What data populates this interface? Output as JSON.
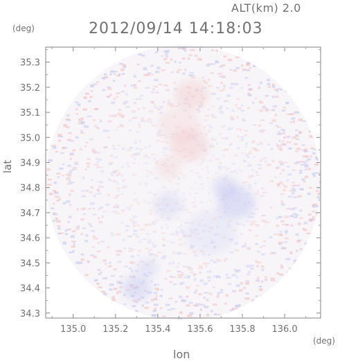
{
  "header": {
    "alt_label": "ALT(km) 2.0",
    "timestamp": "2012/09/14 14:18:03"
  },
  "colors": {
    "positive": "#f2c4c4",
    "negative": "#c8ccf2",
    "frame": "#808080"
  },
  "chart_data": {
    "type": "heatmap",
    "title": "",
    "xlabel": "lon",
    "ylabel": "lat",
    "x_unit": "(deg)",
    "y_unit": "(deg)",
    "xlim": [
      134.87,
      136.17
    ],
    "ylim": [
      34.28,
      35.36
    ],
    "x_ticks": [
      135.0,
      135.2,
      135.4,
      135.6,
      135.8,
      136.0
    ],
    "x_tick_labels": [
      "135.0",
      "135.2",
      "135.4",
      "135.6",
      "135.8",
      "136.0"
    ],
    "y_ticks": [
      34.3,
      34.4,
      34.5,
      34.6,
      34.7,
      34.8,
      34.9,
      35.0,
      35.1,
      35.2,
      35.3
    ],
    "y_tick_labels": [
      "34.3",
      "34.4",
      "34.5",
      "34.6",
      "34.7",
      "34.8",
      "34.9",
      "35.0",
      "35.1",
      "35.2",
      "35.3"
    ],
    "coverage": {
      "shape": "circle",
      "center_lon": 135.52,
      "center_lat": 34.82,
      "radius_lon": 0.65
    },
    "regions": [
      {
        "sign": "negative",
        "lon": 135.77,
        "lat": 34.74,
        "r": 0.09,
        "intensity": 0.55
      },
      {
        "sign": "negative",
        "lon": 135.72,
        "lat": 34.8,
        "r": 0.06,
        "intensity": 0.5
      },
      {
        "sign": "negative",
        "lon": 135.45,
        "lat": 34.73,
        "r": 0.07,
        "intensity": 0.35
      },
      {
        "sign": "negative",
        "lon": 135.3,
        "lat": 34.4,
        "r": 0.07,
        "intensity": 0.5
      },
      {
        "sign": "negative",
        "lon": 135.35,
        "lat": 34.48,
        "r": 0.05,
        "intensity": 0.4
      },
      {
        "sign": "negative",
        "lon": 135.65,
        "lat": 34.62,
        "r": 0.12,
        "intensity": 0.25
      },
      {
        "sign": "positive",
        "lon": 135.56,
        "lat": 35.17,
        "r": 0.08,
        "intensity": 0.4
      },
      {
        "sign": "positive",
        "lon": 135.55,
        "lat": 34.97,
        "r": 0.09,
        "intensity": 0.4
      },
      {
        "sign": "positive",
        "lon": 135.45,
        "lat": 34.88,
        "r": 0.06,
        "intensity": 0.3
      },
      {
        "sign": "positive",
        "lon": 135.5,
        "lat": 35.05,
        "r": 0.1,
        "intensity": 0.25
      }
    ]
  }
}
